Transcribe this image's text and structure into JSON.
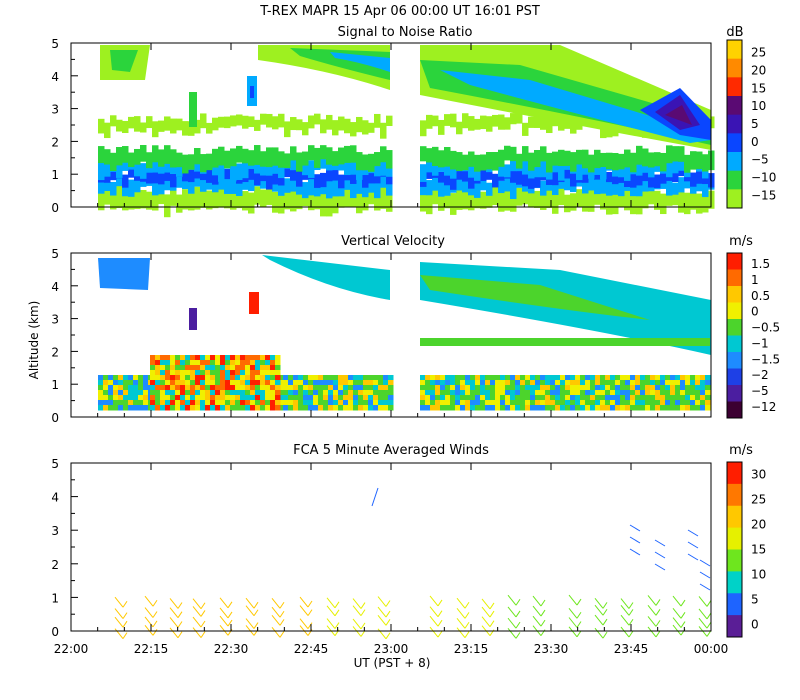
{
  "figure": {
    "title": "T-REX  MAPR 15 Apr 06  00:00 UT  16:01  PST",
    "ylabel": "Altitude (km)",
    "xlabel": "UT  (PST + 8)"
  },
  "chart_data": [
    {
      "type": "heatmap",
      "title": "Signal to Noise Ratio",
      "x_ticks": [
        "22:00",
        "22:15",
        "22:30",
        "22:45",
        "23:00",
        "23:15",
        "23:30",
        "23:45",
        "00:00"
      ],
      "ylim": [
        0,
        5
      ],
      "y_ticks": [
        0,
        1,
        2,
        3,
        4,
        5
      ],
      "colorbar": {
        "unit": "dB",
        "labels": [
          "25",
          "20",
          "15",
          "10",
          "5",
          "0",
          "−5",
          "−10",
          "−15"
        ],
        "colors": [
          "#ffd200",
          "#ff8a00",
          "#ff2a00",
          "#5a0a73",
          "#3a14b4",
          "#0a46ff",
          "#00aaff",
          "#2bd43c",
          "#9ef020"
        ]
      }
    },
    {
      "type": "heatmap",
      "title": "Vertical Velocity",
      "x_ticks": [
        "22:00",
        "22:15",
        "22:30",
        "22:45",
        "23:00",
        "23:15",
        "23:30",
        "23:45",
        "00:00"
      ],
      "ylim": [
        0,
        5
      ],
      "y_ticks": [
        0,
        1,
        2,
        3,
        4,
        5
      ],
      "colorbar": {
        "unit": "m/s",
        "labels": [
          "1.5",
          "1",
          "0.5",
          "0",
          "−0.5",
          "−1",
          "−1.5",
          "−2",
          "−5",
          "−12"
        ],
        "colors": [
          "#ff1e00",
          "#ff6a00",
          "#ffc800",
          "#f0f000",
          "#4cd42c",
          "#00c8d2",
          "#1e8cff",
          "#1e40e6",
          "#4b1ea0",
          "#3c0032"
        ]
      }
    },
    {
      "type": "scatter",
      "title": "FCA 5 Minute Averaged Winds",
      "x_ticks": [
        "22:00",
        "22:15",
        "22:30",
        "22:45",
        "23:00",
        "23:15",
        "23:30",
        "23:45",
        "00:00"
      ],
      "ylim": [
        0,
        5
      ],
      "y_ticks": [
        0,
        1,
        2,
        3,
        4,
        5
      ],
      "colorbar": {
        "unit": "m/s",
        "labels": [
          "30",
          "25",
          "20",
          "15",
          "10",
          "5",
          "0"
        ],
        "colors": [
          "#ff1e00",
          "#ff7800",
          "#ffc800",
          "#e6f000",
          "#6ee61e",
          "#00d2c8",
          "#1e64ff",
          "#5a1e96"
        ]
      }
    }
  ]
}
